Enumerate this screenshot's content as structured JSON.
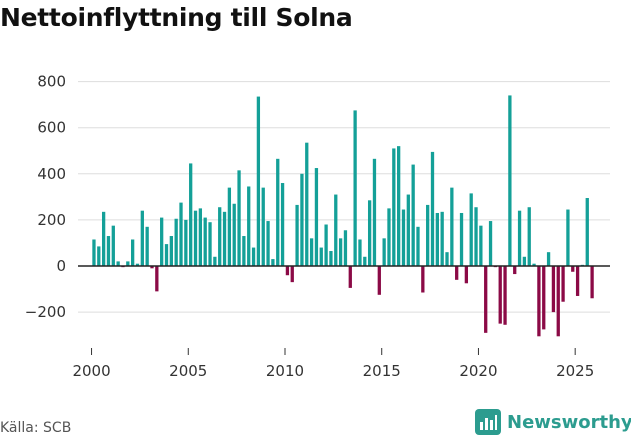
{
  "chart_data": {
    "type": "bar",
    "title": "Nettoinflyttning till Solna",
    "source": "Källa: SCB",
    "brand": "Newsworthy",
    "ylim": [
      -350,
      850
    ],
    "yticks": [
      800,
      600,
      400,
      200,
      0,
      -200
    ],
    "ytick_labels": [
      "800",
      "600",
      "400",
      "200",
      "0",
      "−200"
    ],
    "xlim": [
      1999.3,
      2026.8
    ],
    "xticks": [
      2000,
      2005,
      2010,
      2015,
      2020,
      2025
    ],
    "xtick_labels": [
      "2000",
      "2005",
      "2010",
      "2015",
      "2020",
      "2025"
    ],
    "positive_color": "#14a098",
    "negative_color": "#8b0a46",
    "period": "monthly",
    "start": 2000.0,
    "step": 0.25,
    "values": [
      115,
      85,
      235,
      130,
      175,
      20,
      -5,
      20,
      115,
      10,
      240,
      170,
      -10,
      -110,
      210,
      95,
      130,
      205,
      275,
      200,
      445,
      240,
      250,
      210,
      190,
      40,
      255,
      235,
      340,
      270,
      415,
      130,
      345,
      80,
      735,
      340,
      195,
      30,
      465,
      360,
      -40,
      -70,
      265,
      400,
      535,
      120,
      425,
      80,
      180,
      65,
      310,
      120,
      155,
      -95,
      675,
      115,
      40,
      285,
      465,
      -125,
      120,
      250,
      510,
      520,
      245,
      310,
      440,
      170,
      -115,
      265,
      495,
      230,
      235,
      60,
      340,
      -60,
      230,
      -75,
      315,
      255,
      175,
      -290,
      195,
      -5,
      -250,
      -255,
      740,
      -35,
      240,
      40,
      255,
      10,
      -305,
      -275,
      60,
      -200,
      -305,
      -155,
      245,
      -25,
      -130,
      5,
      295,
      -140
    ]
  }
}
